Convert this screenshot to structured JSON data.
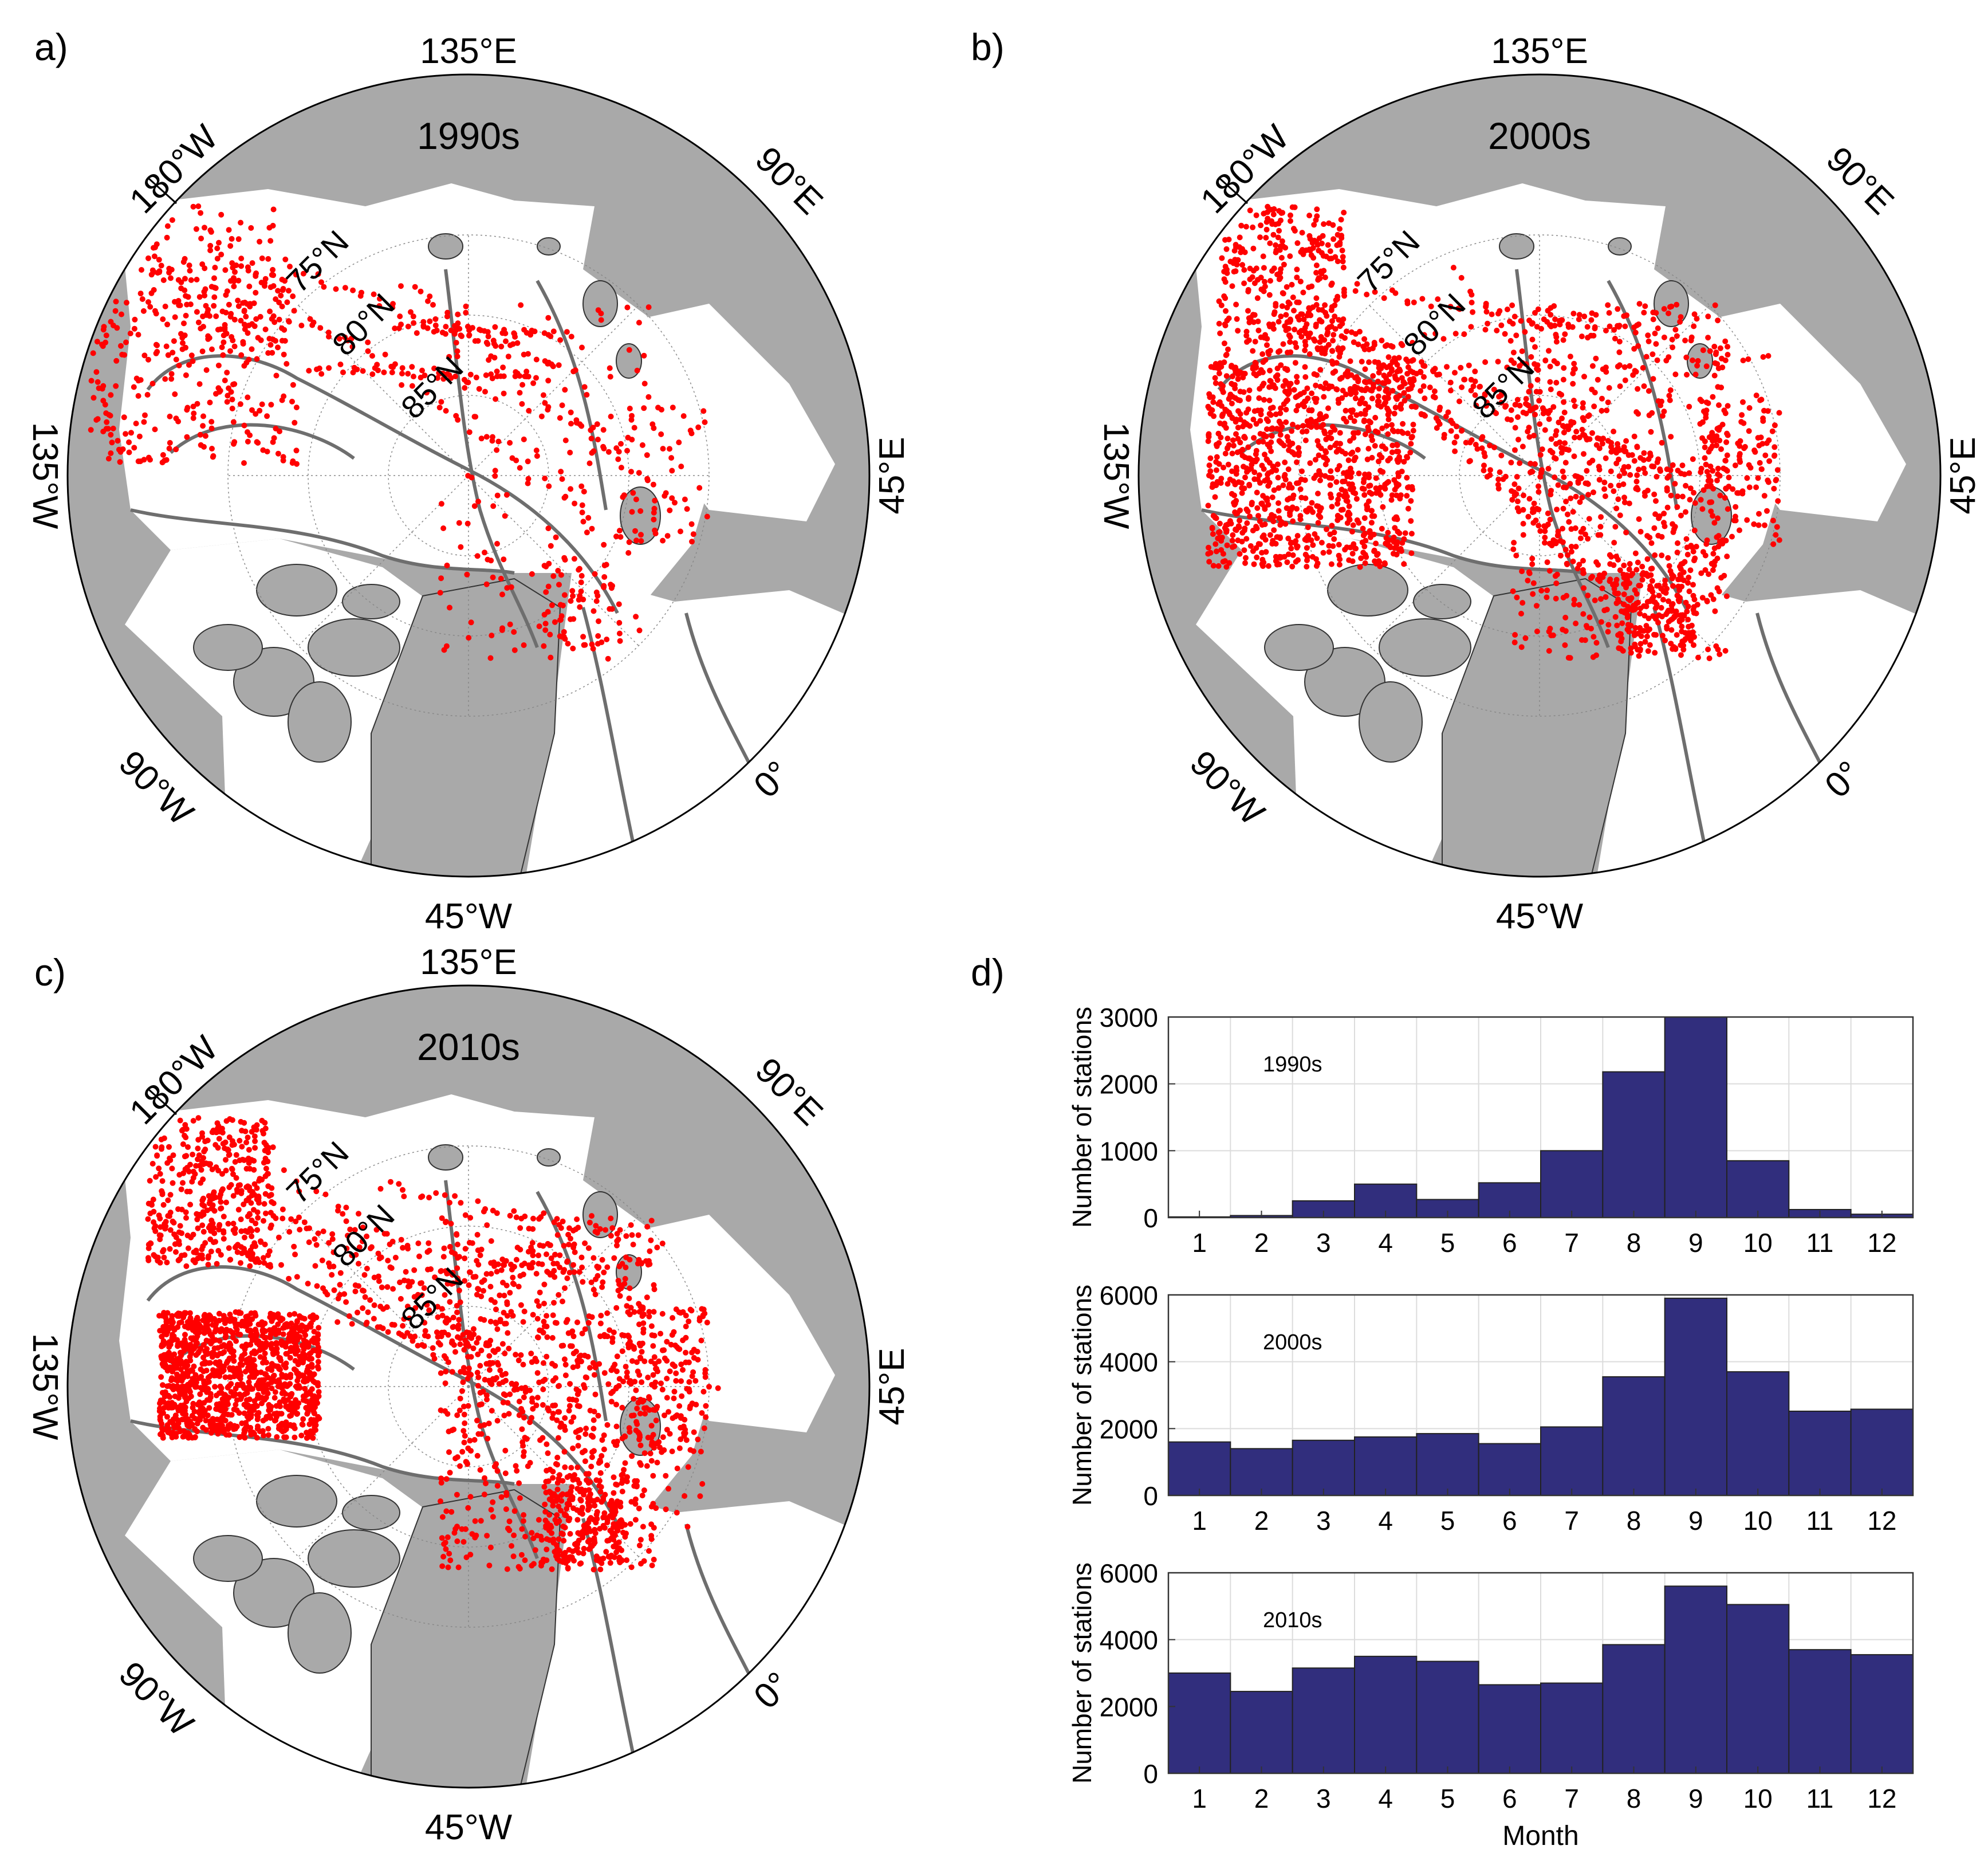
{
  "panels": [
    {
      "letter": "a)",
      "decade": "1990s",
      "lon_labels": {
        "top": "135°E",
        "upper_left": "180°W",
        "upper_right": "90°E",
        "left": "135°W",
        "right": "45°E",
        "lower_left": "90°W",
        "lower_right": "0°",
        "bottom": "45°W"
      },
      "lat_labels": [
        "75°N",
        "80°N",
        "85°N"
      ]
    },
    {
      "letter": "b)",
      "decade": "2000s",
      "lon_labels": {
        "top": "135°E",
        "upper_left": "180°W",
        "upper_right": "90°E",
        "left": "135°W",
        "right": "45°E",
        "lower_left": "90°W",
        "lower_right": "0°",
        "bottom": "45°W"
      },
      "lat_labels": [
        "75°N",
        "80°N",
        "85°N"
      ]
    },
    {
      "letter": "c)",
      "decade": "2010s",
      "lon_labels": {
        "top": "135°E",
        "upper_left": "180°W",
        "upper_right": "90°E",
        "left": "135°W",
        "right": "45°E",
        "lower_left": "90°W",
        "lower_right": "0°",
        "bottom": "45°W"
      },
      "lat_labels": [
        "75°N",
        "80°N",
        "85°N"
      ]
    }
  ],
  "colors": {
    "land": "#a9a9a9",
    "ocean": "#ffffff",
    "stations": "#ff0000",
    "isobaths": "#6e6e6e",
    "bars": "#312e7d"
  },
  "chart_data": [
    {
      "panel": "d)",
      "type": "bar",
      "label": "1990s",
      "categories": [
        "1",
        "2",
        "3",
        "4",
        "5",
        "6",
        "7",
        "8",
        "9",
        "10",
        "11",
        "12"
      ],
      "values": [
        10,
        30,
        250,
        500,
        270,
        520,
        1000,
        2180,
        3000,
        850,
        120,
        50
      ],
      "ylabel": "Number of stations",
      "xlabel": "",
      "ylim": [
        0,
        3000
      ],
      "yticks": [
        0,
        1000,
        2000,
        3000
      ],
      "grid": true
    },
    {
      "panel": "d)",
      "type": "bar",
      "label": "2000s",
      "categories": [
        "1",
        "2",
        "3",
        "4",
        "5",
        "6",
        "7",
        "8",
        "9",
        "10",
        "11",
        "12"
      ],
      "values": [
        1600,
        1400,
        1650,
        1750,
        1850,
        1550,
        2050,
        3550,
        5900,
        3700,
        2520,
        2580
      ],
      "ylabel": "Number of stations",
      "xlabel": "",
      "ylim": [
        0,
        6000
      ],
      "yticks": [
        0,
        2000,
        4000,
        6000
      ],
      "grid": true
    },
    {
      "panel": "d)",
      "type": "bar",
      "label": "2010s",
      "categories": [
        "1",
        "2",
        "3",
        "4",
        "5",
        "6",
        "7",
        "8",
        "9",
        "10",
        "11",
        "12"
      ],
      "values": [
        3000,
        2450,
        3150,
        3500,
        3350,
        2650,
        2700,
        3850,
        5600,
        5050,
        3700,
        3550
      ],
      "ylabel": "Number of stations",
      "xlabel": "Month",
      "ylim": [
        0,
        6000
      ],
      "yticks": [
        0,
        2000,
        4000,
        6000
      ],
      "grid": true
    }
  ],
  "hist_panel_letter": "d)"
}
